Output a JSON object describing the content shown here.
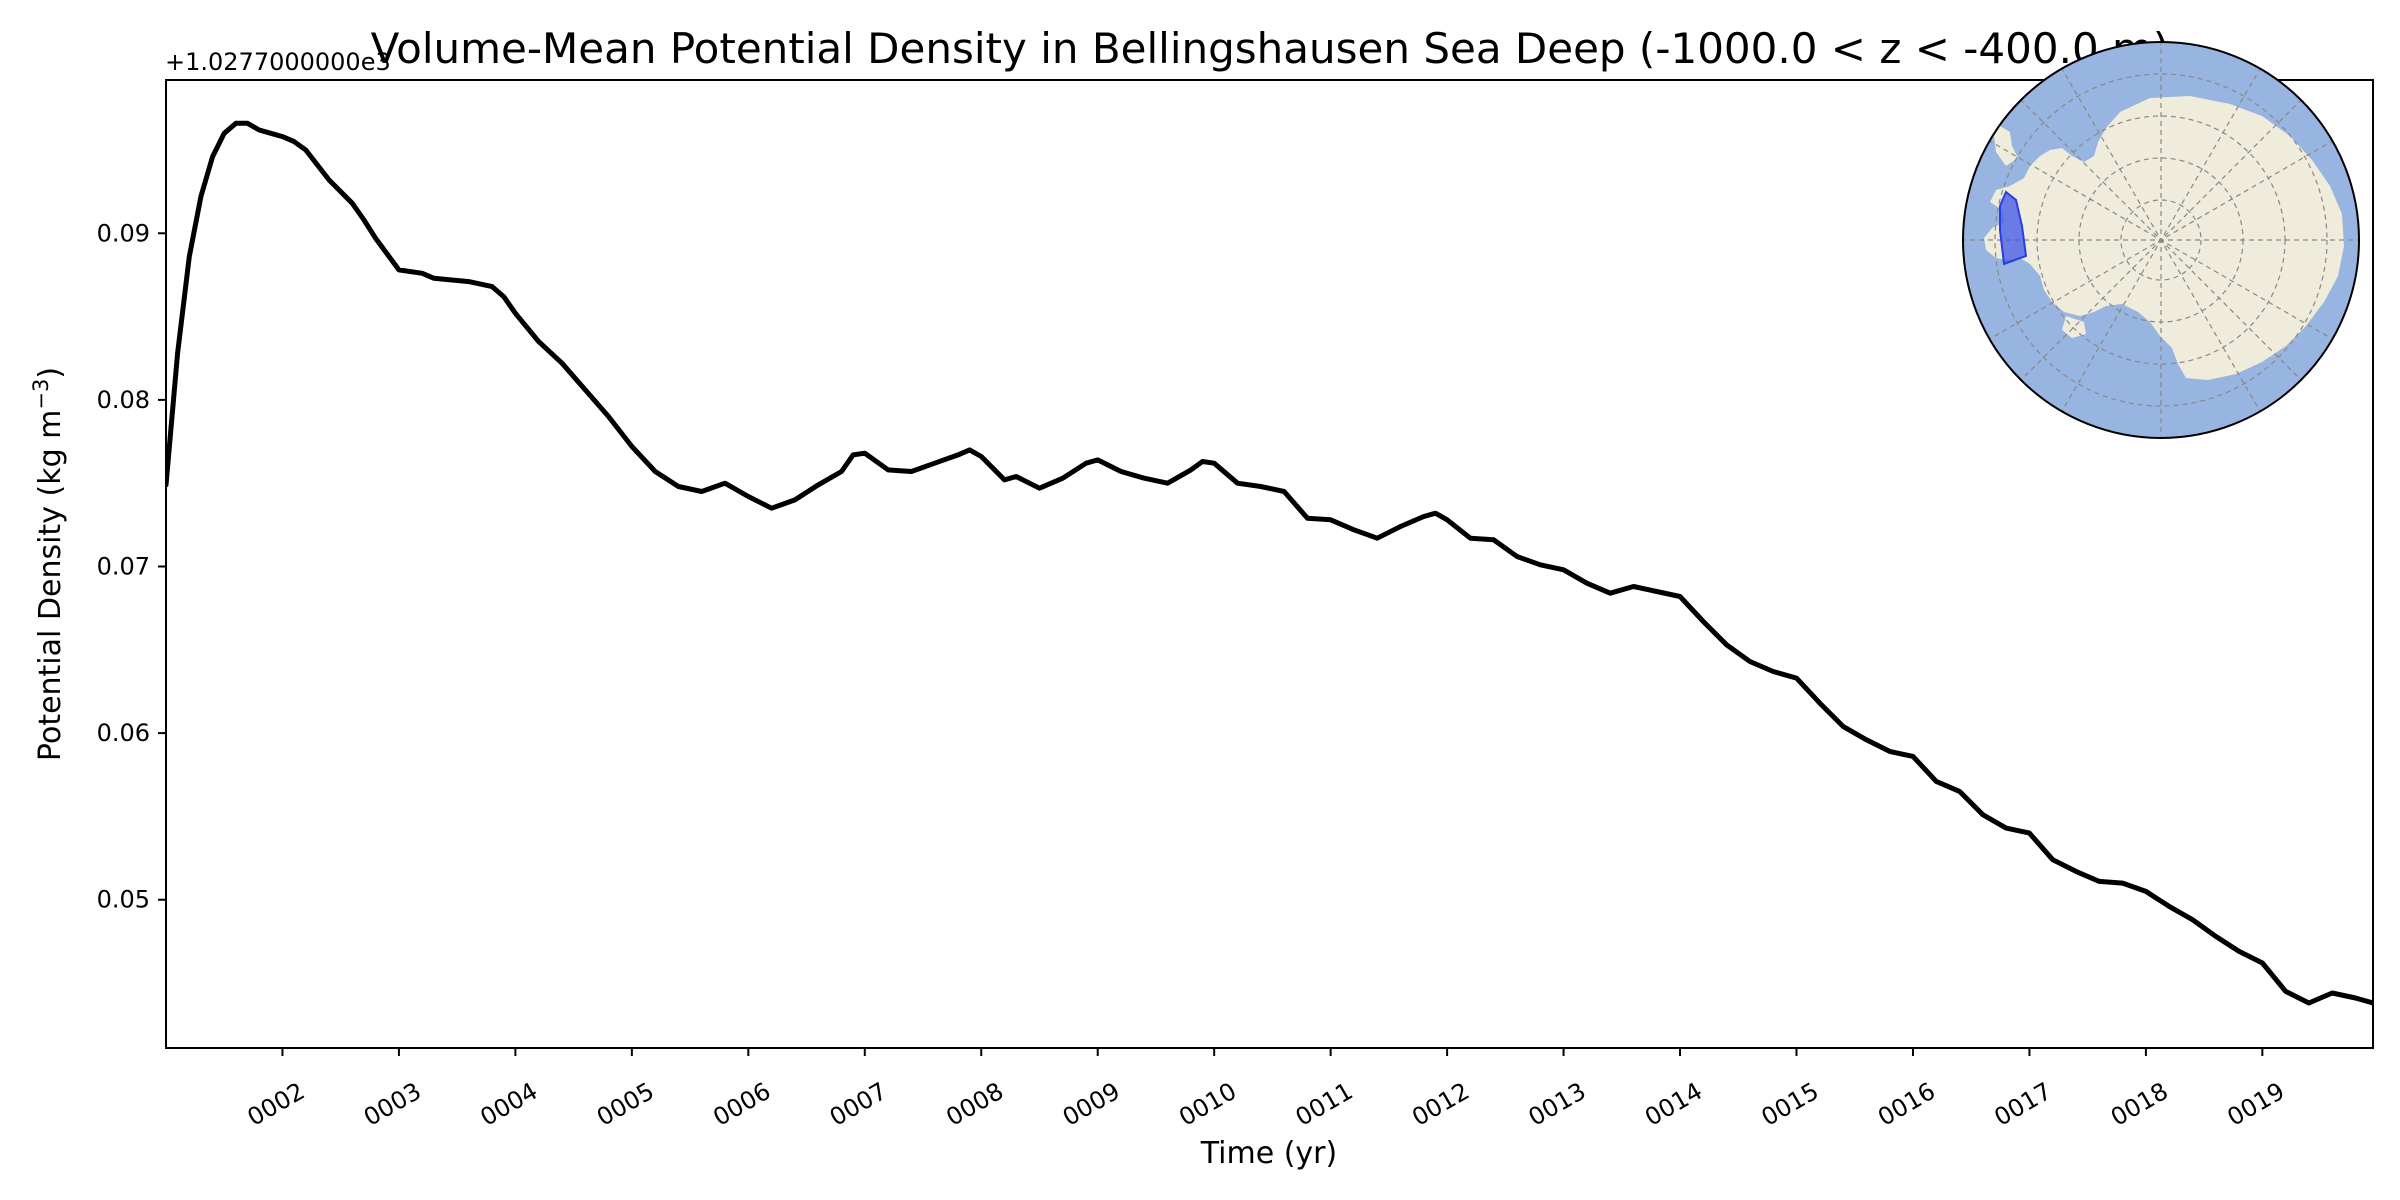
{
  "chart_data": {
    "type": "line",
    "title": "Volume-Mean Potential Density in Bellingshausen Sea Deep (-1000.0 < z < -400.0 m)",
    "xlabel": "Time (yr)",
    "ylabel": "Potential Density (kg m",
    "ylabel_unit_exponent": "−3",
    "ylabel_close": ")",
    "offset_text": "+1.0277000000e3",
    "xlim": [
      1.0,
      19.95
    ],
    "ylim": [
      0.0411,
      0.0992
    ],
    "x_ticks": [
      2,
      3,
      4,
      5,
      6,
      7,
      8,
      9,
      10,
      11,
      12,
      13,
      14,
      15,
      16,
      17,
      18,
      19
    ],
    "x_tick_labels": [
      "0002",
      "0003",
      "0004",
      "0005",
      "0006",
      "0007",
      "0008",
      "0009",
      "0010",
      "0011",
      "0012",
      "0013",
      "0014",
      "0015",
      "0016",
      "0017",
      "0018",
      "0019"
    ],
    "y_ticks": [
      0.05,
      0.06,
      0.07,
      0.08,
      0.09
    ],
    "y_tick_labels": [
      "0.05",
      "0.06",
      "0.07",
      "0.08",
      "0.09"
    ],
    "grid": false,
    "series": [
      {
        "name": "Bellingshausen Sea Deep",
        "color": "#000000",
        "x": [
          1.0,
          1.1,
          1.2,
          1.3,
          1.4,
          1.5,
          1.6,
          1.7,
          1.8,
          1.9,
          2.0,
          2.1,
          2.2,
          2.4,
          2.6,
          2.7,
          2.8,
          3.0,
          3.2,
          3.3,
          3.6,
          3.8,
          3.9,
          4.0,
          4.2,
          4.4,
          4.6,
          4.8,
          5.0,
          5.2,
          5.4,
          5.6,
          5.8,
          6.0,
          6.2,
          6.4,
          6.6,
          6.8,
          6.9,
          7.0,
          7.2,
          7.4,
          7.6,
          7.8,
          7.9,
          8.0,
          8.2,
          8.3,
          8.5,
          8.7,
          8.9,
          9.0,
          9.2,
          9.4,
          9.6,
          9.8,
          9.9,
          10.0,
          10.2,
          10.4,
          10.6,
          10.8,
          11.0,
          11.2,
          11.4,
          11.6,
          11.8,
          11.9,
          12.0,
          12.2,
          12.4,
          12.6,
          12.8,
          13.0,
          13.2,
          13.4,
          13.6,
          13.8,
          14.0,
          14.2,
          14.4,
          14.6,
          14.8,
          15.0,
          15.2,
          15.4,
          15.6,
          15.8,
          16.0,
          16.2,
          16.4,
          16.6,
          16.8,
          17.0,
          17.2,
          17.4,
          17.6,
          17.8,
          18.0,
          18.2,
          18.4,
          18.6,
          18.8,
          19.0,
          19.2,
          19.4,
          19.6,
          19.8,
          19.95
        ],
        "values": [
          0.0749,
          0.0828,
          0.0886,
          0.0922,
          0.0946,
          0.096,
          0.0966,
          0.0966,
          0.0962,
          0.096,
          0.0958,
          0.0955,
          0.095,
          0.0932,
          0.0918,
          0.0908,
          0.0897,
          0.0878,
          0.0876,
          0.0873,
          0.0871,
          0.0868,
          0.0862,
          0.0852,
          0.0835,
          0.0822,
          0.0806,
          0.079,
          0.0772,
          0.0757,
          0.0748,
          0.0745,
          0.075,
          0.0742,
          0.0735,
          0.074,
          0.0749,
          0.0757,
          0.0767,
          0.0768,
          0.0758,
          0.0757,
          0.0762,
          0.0767,
          0.077,
          0.0766,
          0.0752,
          0.0754,
          0.0747,
          0.0753,
          0.0762,
          0.0764,
          0.0757,
          0.0753,
          0.075,
          0.0758,
          0.0763,
          0.0762,
          0.075,
          0.0748,
          0.0745,
          0.0729,
          0.0728,
          0.0722,
          0.0717,
          0.0724,
          0.073,
          0.0732,
          0.0728,
          0.0717,
          0.0716,
          0.0706,
          0.0701,
          0.0698,
          0.069,
          0.0684,
          0.0688,
          0.0685,
          0.0682,
          0.0667,
          0.0653,
          0.0643,
          0.0637,
          0.0633,
          0.0618,
          0.0604,
          0.0596,
          0.0589,
          0.0586,
          0.0571,
          0.0565,
          0.0551,
          0.0543,
          0.054,
          0.0524,
          0.0517,
          0.0511,
          0.051,
          0.0505,
          0.0496,
          0.0488,
          0.0478,
          0.0469,
          0.0462,
          0.0445,
          0.0438,
          0.0444,
          0.0441,
          0.0438
        ]
      }
    ],
    "inset_map": {
      "projection": "south-polar stereographic",
      "region": "Bellingshausen Sea",
      "ocean_color": "#98b4e0",
      "land_color": "#efecdc",
      "region_color": "#3f55ea"
    }
  }
}
